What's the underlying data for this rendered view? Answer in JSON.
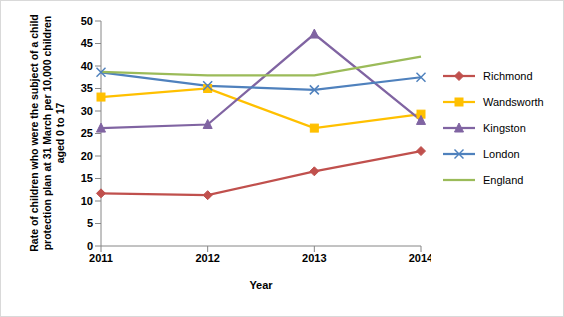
{
  "chart_data": {
    "type": "line",
    "x_label": "Year",
    "y_label": "Rate of children who were the subject of a child protection plan at 31 March per 10,000 children aged 0 to 17",
    "categories": [
      "2011",
      "2012",
      "2013",
      "2014"
    ],
    "series": [
      {
        "name": "Richmond",
        "color": "#C0504D",
        "marker": "diamond",
        "values": [
          11.7,
          11.3,
          16.6,
          21.1
        ]
      },
      {
        "name": "Wandsworth",
        "color": "#FFC000",
        "marker": "square",
        "values": [
          33.1,
          35.0,
          26.2,
          29.3
        ]
      },
      {
        "name": "Kingston",
        "color": "#8064A2",
        "marker": "triangle",
        "values": [
          26.2,
          27.0,
          47.1,
          27.9
        ]
      },
      {
        "name": "London",
        "color": "#4F81BD",
        "marker": "x",
        "values": [
          38.6,
          35.6,
          34.7,
          37.5
        ]
      },
      {
        "name": "England",
        "color": "#9BBB59",
        "marker": "none",
        "values": [
          38.7,
          37.9,
          37.9,
          42.1
        ]
      }
    ],
    "ylim": [
      0,
      50
    ],
    "yticks": [
      0,
      5,
      10,
      15,
      20,
      25,
      30,
      35,
      40,
      45,
      50
    ],
    "grid": false,
    "legend": "right"
  }
}
